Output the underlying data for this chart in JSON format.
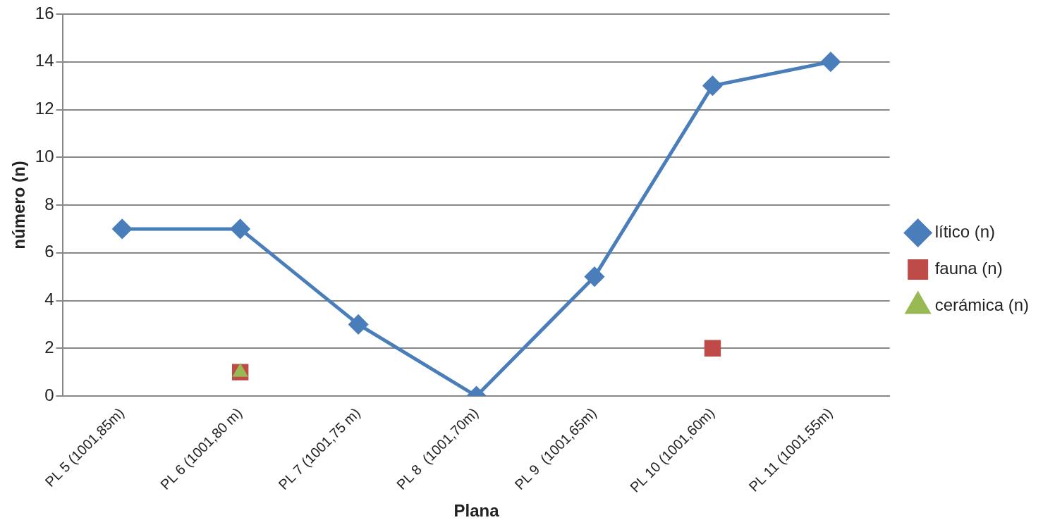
{
  "chart_data": {
    "type": "line",
    "xlabel": "Plana",
    "ylabel": "número (n)",
    "categories": [
      "PL 5 (1001,85m)",
      "PL 6 (1001,80 m)",
      "PL 7 (1001,75 m)",
      "PL 8  (1001,70m)",
      "PL 9  (1001,65m)",
      "PL 10 (1001,60m)",
      "PL 11 (1001,55m)"
    ],
    "series": [
      {
        "name": "lítico (n)",
        "color": "#4a7ebb",
        "marker": "diamond",
        "values": [
          7,
          7,
          3,
          0,
          5,
          13,
          14
        ]
      },
      {
        "name": "fauna (n)",
        "type": "scatter",
        "color": "#be4b48",
        "marker": "square",
        "values": [
          null,
          1,
          null,
          null,
          null,
          2,
          null
        ]
      },
      {
        "name": "cerámica (n)",
        "type": "scatter",
        "color": "#98b954",
        "marker": "triangle",
        "values": [
          null,
          1,
          null,
          null,
          null,
          null,
          null
        ]
      }
    ],
    "ylim": [
      0,
      16
    ],
    "yticks": [
      0,
      2,
      4,
      6,
      8,
      10,
      12,
      14,
      16
    ],
    "grid": "y",
    "legend": "right",
    "line_style": "solid"
  }
}
